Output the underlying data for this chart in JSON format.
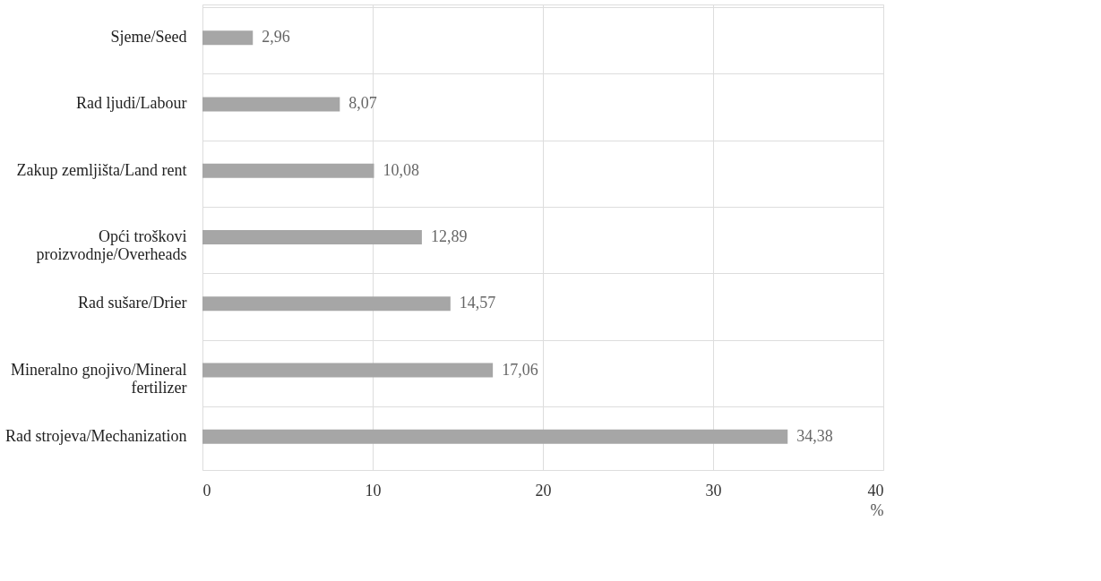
{
  "chart_data": {
    "type": "bar",
    "orientation": "horizontal",
    "categories": [
      "Sjeme/Seed",
      "Rad ljudi/Labour",
      "Zakup zemljišta/Land rent",
      "Opći troškovi proizvodnje/Overheads",
      "Rad sušare/Drier",
      "Mineralno gnojivo/Mineral fertilizer",
      "Rad strojeva/Mechanization"
    ],
    "values": [
      2.96,
      8.07,
      10.08,
      12.89,
      14.57,
      17.06,
      34.38
    ],
    "value_labels": [
      "2,96",
      "8,07",
      "10,08",
      "12,89",
      "14,57",
      "17,06",
      "34,38"
    ],
    "color": "#a6a6a6",
    "xlim": [
      0,
      40
    ],
    "xticks": [
      0,
      10,
      20,
      30,
      40
    ],
    "xlabel": "%",
    "grid": true
  }
}
